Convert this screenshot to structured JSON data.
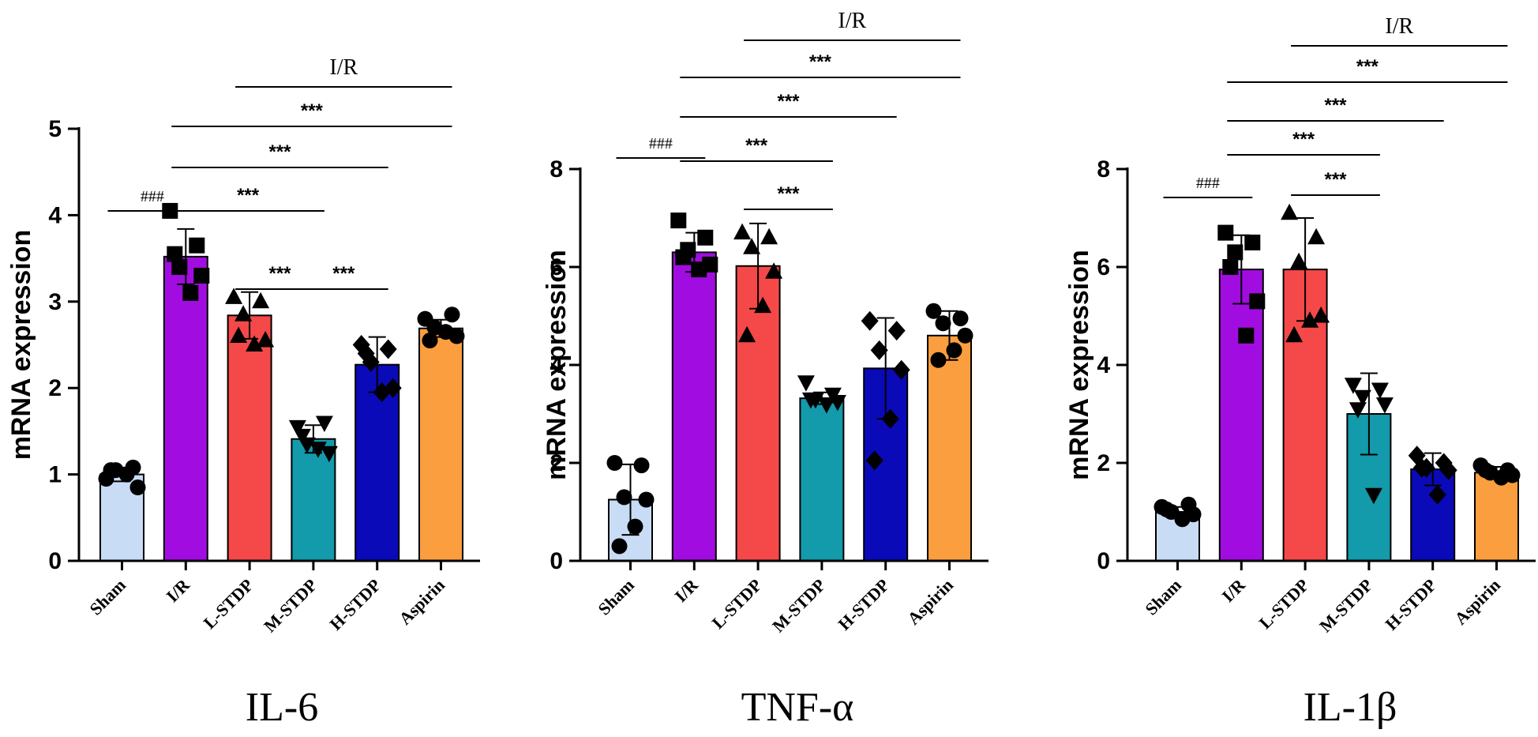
{
  "chart_data": [
    {
      "type": "bar",
      "title": "IL-6",
      "ylabel": "mRNA expression",
      "xlabel": "",
      "ylim": [
        0,
        5
      ],
      "yticks": [
        "0",
        "1",
        "2",
        "3",
        "4",
        "5"
      ],
      "categories": [
        "Sham",
        "I/R",
        "L-STDP",
        "M-STDP",
        "H-STDP",
        "Aspirin"
      ],
      "colors": [
        "#c9dcf5",
        "#a10de0",
        "#f54848",
        "#139aab",
        "#0a0ab8",
        "#fb9e40"
      ],
      "markers": [
        "circle",
        "square",
        "triangle-up",
        "triangle-down",
        "diamond",
        "circle"
      ],
      "values": [
        1.0,
        3.52,
        2.84,
        1.41,
        2.27,
        2.69
      ],
      "errors": [
        0.08,
        0.32,
        0.27,
        0.16,
        0.32,
        0.1
      ],
      "points": [
        [
          0.95,
          1.08,
          1.05,
          0.85,
          1.0,
          1.05
        ],
        [
          4.05,
          3.65,
          3.4,
          3.3,
          3.1,
          3.55
        ],
        [
          3.05,
          3.0,
          2.85,
          2.55,
          2.5,
          2.6
        ],
        [
          1.55,
          1.6,
          1.35,
          1.25,
          1.3,
          1.45
        ],
        [
          2.5,
          2.45,
          2.3,
          2.0,
          1.95,
          2.4
        ],
        [
          2.8,
          2.85,
          2.7,
          2.6,
          2.65,
          2.55
        ]
      ],
      "group_label": "I/R",
      "group_span": [
        2,
        5
      ],
      "comparisons": [
        {
          "from": 0,
          "to": 1,
          "label": "###"
        },
        {
          "from": 1,
          "to": 3,
          "label": "***"
        },
        {
          "from": 2,
          "to": 3,
          "label": "***"
        },
        {
          "from": 3,
          "to": 4,
          "label": "***"
        },
        {
          "from": 1,
          "to": 4,
          "label": "***"
        },
        {
          "from": 1,
          "to": 5,
          "label": "***"
        }
      ]
    },
    {
      "type": "bar",
      "title": "TNF-α",
      "ylabel": "mRNA expression",
      "xlabel": "",
      "ylim": [
        0,
        8
      ],
      "yticks": [
        "0",
        "2",
        "4",
        "6",
        "8"
      ],
      "categories": [
        "Sham",
        "I/R",
        "L-STDP",
        "M-STDP",
        "H-STDP",
        "Aspirin"
      ],
      "colors": [
        "#c9dcf5",
        "#a10de0",
        "#f54848",
        "#139aab",
        "#0a0ab8",
        "#fb9e40"
      ],
      "markers": [
        "circle",
        "square",
        "triangle-up",
        "triangle-down",
        "diamond",
        "circle"
      ],
      "values": [
        1.25,
        6.3,
        6.02,
        3.32,
        3.93,
        4.6
      ],
      "errors": [
        0.72,
        0.4,
        0.87,
        0.12,
        1.03,
        0.5
      ],
      "points": [
        [
          2.0,
          1.95,
          1.3,
          1.25,
          0.7,
          0.3
        ],
        [
          6.95,
          6.6,
          6.35,
          6.05,
          5.95,
          6.2
        ],
        [
          6.7,
          6.6,
          6.4,
          5.9,
          5.2,
          4.6
        ],
        [
          3.65,
          3.4,
          3.3,
          3.25,
          3.2,
          3.3
        ],
        [
          4.9,
          4.7,
          4.3,
          3.9,
          2.9,
          2.05
        ],
        [
          5.1,
          4.95,
          4.85,
          4.6,
          4.3,
          4.1
        ]
      ],
      "group_label": "I/R",
      "group_span": [
        2,
        5
      ],
      "comparisons": [
        {
          "from": 0,
          "to": 1,
          "label": "###"
        },
        {
          "from": 2,
          "to": 3,
          "label": "***"
        },
        {
          "from": 1,
          "to": 3,
          "label": "***"
        },
        {
          "from": 1,
          "to": 4,
          "label": "***"
        },
        {
          "from": 1,
          "to": 5,
          "label": "***"
        }
      ]
    },
    {
      "type": "bar",
      "title": "IL-1β",
      "ylabel": "mRNA expression",
      "xlabel": "",
      "ylim": [
        0,
        8
      ],
      "yticks": [
        "0",
        "2",
        "4",
        "6",
        "8"
      ],
      "categories": [
        "Sham",
        "I/R",
        "L-STDP",
        "M-STDP",
        "H-STDP",
        "Aspirin"
      ],
      "colors": [
        "#c9dcf5",
        "#a10de0",
        "#f54848",
        "#139aab",
        "#0a0ab8",
        "#fb9e40"
      ],
      "markers": [
        "circle",
        "square",
        "triangle-up",
        "triangle-down",
        "diamond",
        "circle"
      ],
      "values": [
        1.0,
        5.95,
        5.95,
        3.0,
        1.87,
        1.8
      ],
      "errors": [
        0.1,
        0.7,
        1.05,
        0.83,
        0.33,
        0.12
      ],
      "points": [
        [
          1.1,
          1.15,
          1.0,
          0.95,
          0.85,
          1.05
        ],
        [
          6.7,
          6.5,
          6.3,
          5.3,
          4.6,
          6.0
        ],
        [
          7.1,
          6.6,
          6.1,
          5.0,
          4.9,
          4.6
        ],
        [
          3.6,
          3.5,
          3.35,
          3.2,
          1.35,
          3.1
        ],
        [
          2.15,
          2.0,
          1.9,
          1.85,
          1.35,
          1.9
        ],
        [
          1.95,
          1.85,
          1.8,
          1.75,
          1.7,
          1.85
        ]
      ],
      "group_label": "I/R",
      "group_span": [
        2,
        5
      ],
      "comparisons": [
        {
          "from": 0,
          "to": 1,
          "label": "###"
        },
        {
          "from": 2,
          "to": 3,
          "label": "***"
        },
        {
          "from": 1,
          "to": 3,
          "label": "***"
        },
        {
          "from": 1,
          "to": 4,
          "label": "***"
        },
        {
          "from": 1,
          "to": 5,
          "label": "***"
        }
      ]
    }
  ]
}
